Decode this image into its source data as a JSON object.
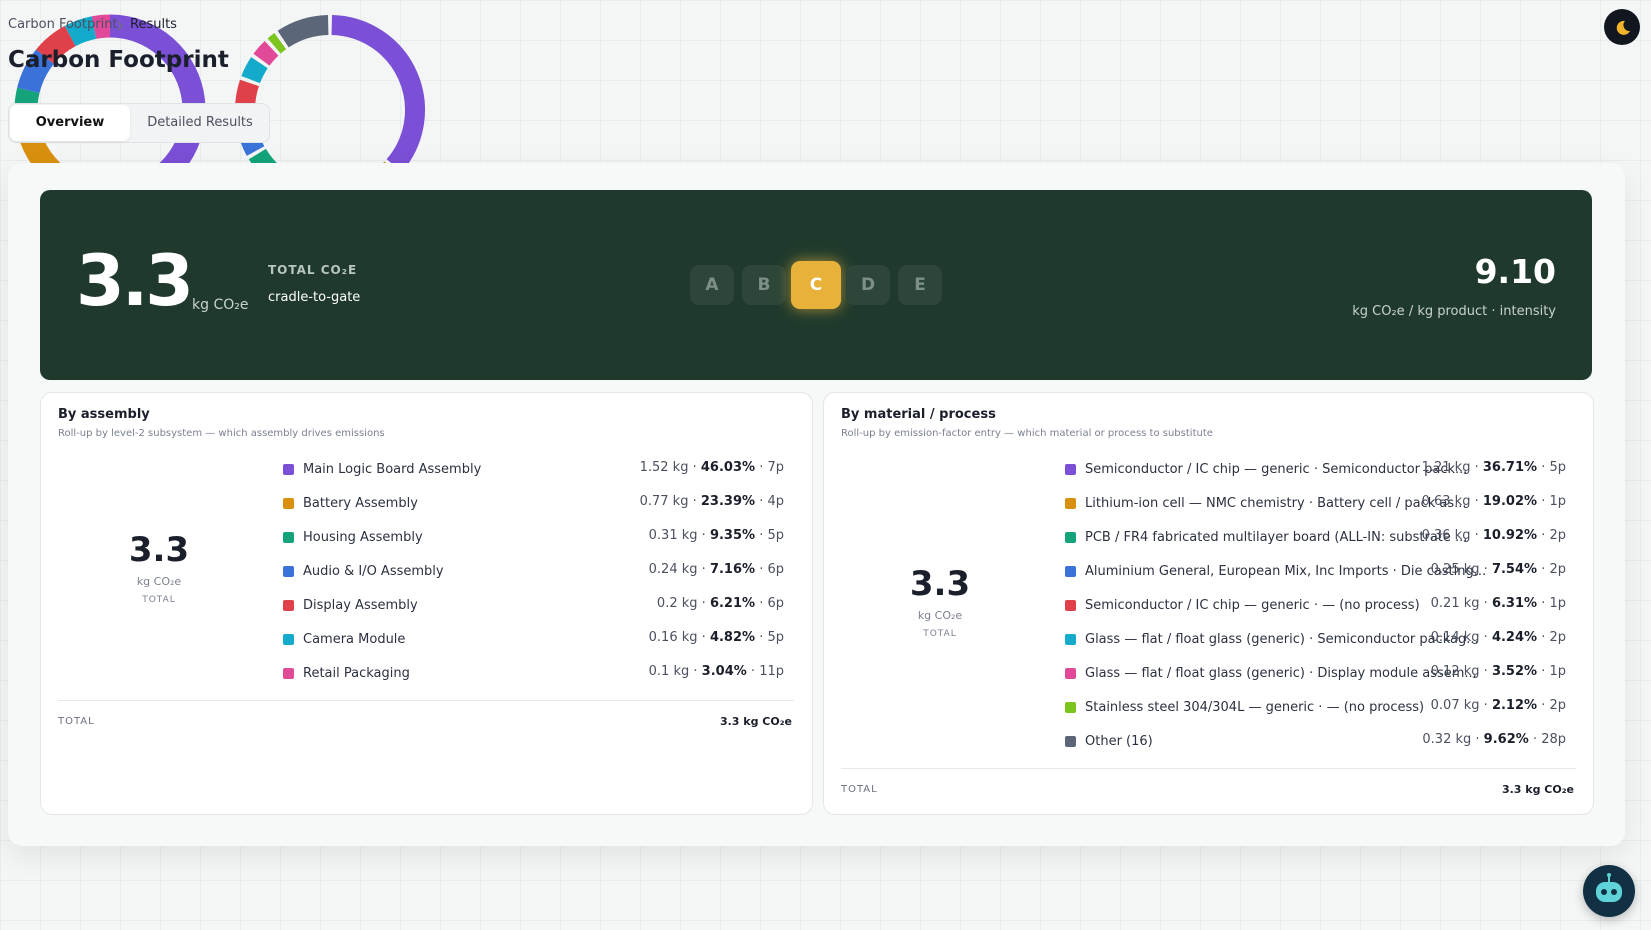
{
  "breadcrumb": [
    "Carbon Footprint",
    "Results"
  ],
  "title": "Carbon Footprint",
  "tabs": [
    "Overview",
    "Detailed Results"
  ],
  "active_tab": 0,
  "summary": {
    "total": "3.3",
    "total_unit": "kg CO₂e",
    "total_label": "TOTAL CO₂E",
    "scope": "cradle-to-gate",
    "grades": [
      "A",
      "B",
      "C",
      "D",
      "E"
    ],
    "active_grade": 2,
    "intensity": "9.10",
    "intensity_label": "kg CO₂e / kg product · intensity"
  },
  "separator": "·",
  "chart_data": [
    {
      "type": "pie",
      "donut": true,
      "title": "By assembly",
      "subtitle": "Roll-up by level-2 subsystem — which assembly drives emissions",
      "categories": [
        "Main Logic Board Assembly",
        "Battery Assembly",
        "Housing Assembly",
        "Audio & I/O Assembly",
        "Display Assembly",
        "Camera Module",
        "Retail Packaging"
      ],
      "values": [
        46.03,
        23.39,
        9.35,
        7.16,
        6.21,
        4.82,
        3.04
      ],
      "value_labels": [
        "46.03%",
        "23.39%",
        "9.35%",
        "7.16%",
        "6.21%",
        "4.82%",
        "3.04%"
      ],
      "amounts": [
        "1.52 kg",
        "0.77 kg",
        "0.31 kg",
        "0.24 kg",
        "0.2 kg",
        "0.16 kg",
        "0.1 kg"
      ],
      "parts": [
        "7p",
        "4p",
        "5p",
        "6p",
        "6p",
        "5p",
        "11p"
      ],
      "colors": [
        "#7b4fd6",
        "#d9900e",
        "#14a37a",
        "#3a72d9",
        "#e0404a",
        "#14aacc",
        "#e04a98"
      ],
      "center_value": "3.3",
      "center_unit": "kg CO₂e",
      "center_label": "TOTAL",
      "total_label": "TOTAL",
      "total_value": "3.3 kg CO₂e"
    },
    {
      "type": "pie",
      "donut": true,
      "title": "By material / process",
      "subtitle": "Roll-up by emission-factor entry — which material or process to substitute",
      "categories": [
        "Semiconductor / IC chip — generic · Semiconductor pack...",
        "Lithium-ion cell — NMC chemistry · Battery cell / pack as...",
        "PCB / FR4 fabricated multilayer board (ALL-IN: substrate ...",
        "Aluminium General, European Mix, Inc Imports · Die casting...",
        "Semiconductor / IC chip — generic · — (no process)",
        "Glass — flat / float glass (generic) · Semiconductor packag...",
        "Glass — flat / float glass (generic) · Display module assem...",
        "Stainless steel 304/304L — generic · — (no process)",
        "Other (16)"
      ],
      "values": [
        36.71,
        19.02,
        10.92,
        7.54,
        6.31,
        4.24,
        3.52,
        2.12,
        9.62
      ],
      "value_labels": [
        "36.71%",
        "19.02%",
        "10.92%",
        "7.54%",
        "6.31%",
        "4.24%",
        "3.52%",
        "2.12%",
        "9.62%"
      ],
      "amounts": [
        "1.21 kg",
        "0.63 kg",
        "0.36 kg",
        "0.25 kg",
        "0.21 kg",
        "0.14 kg",
        "0.12 kg",
        "0.07 kg",
        "0.32 kg"
      ],
      "parts": [
        "5p",
        "1p",
        "2p",
        "2p",
        "1p",
        "2p",
        "1p",
        "2p",
        "28p"
      ],
      "colors": [
        "#7b4fd6",
        "#d9900e",
        "#14a37a",
        "#3a72d9",
        "#e0404a",
        "#14aacc",
        "#e04a98",
        "#7cc41e",
        "#5b6678"
      ],
      "center_value": "3.3",
      "center_unit": "kg CO₂e",
      "center_label": "TOTAL",
      "total_label": "TOTAL",
      "total_value": "3.3 kg CO₂e"
    }
  ]
}
